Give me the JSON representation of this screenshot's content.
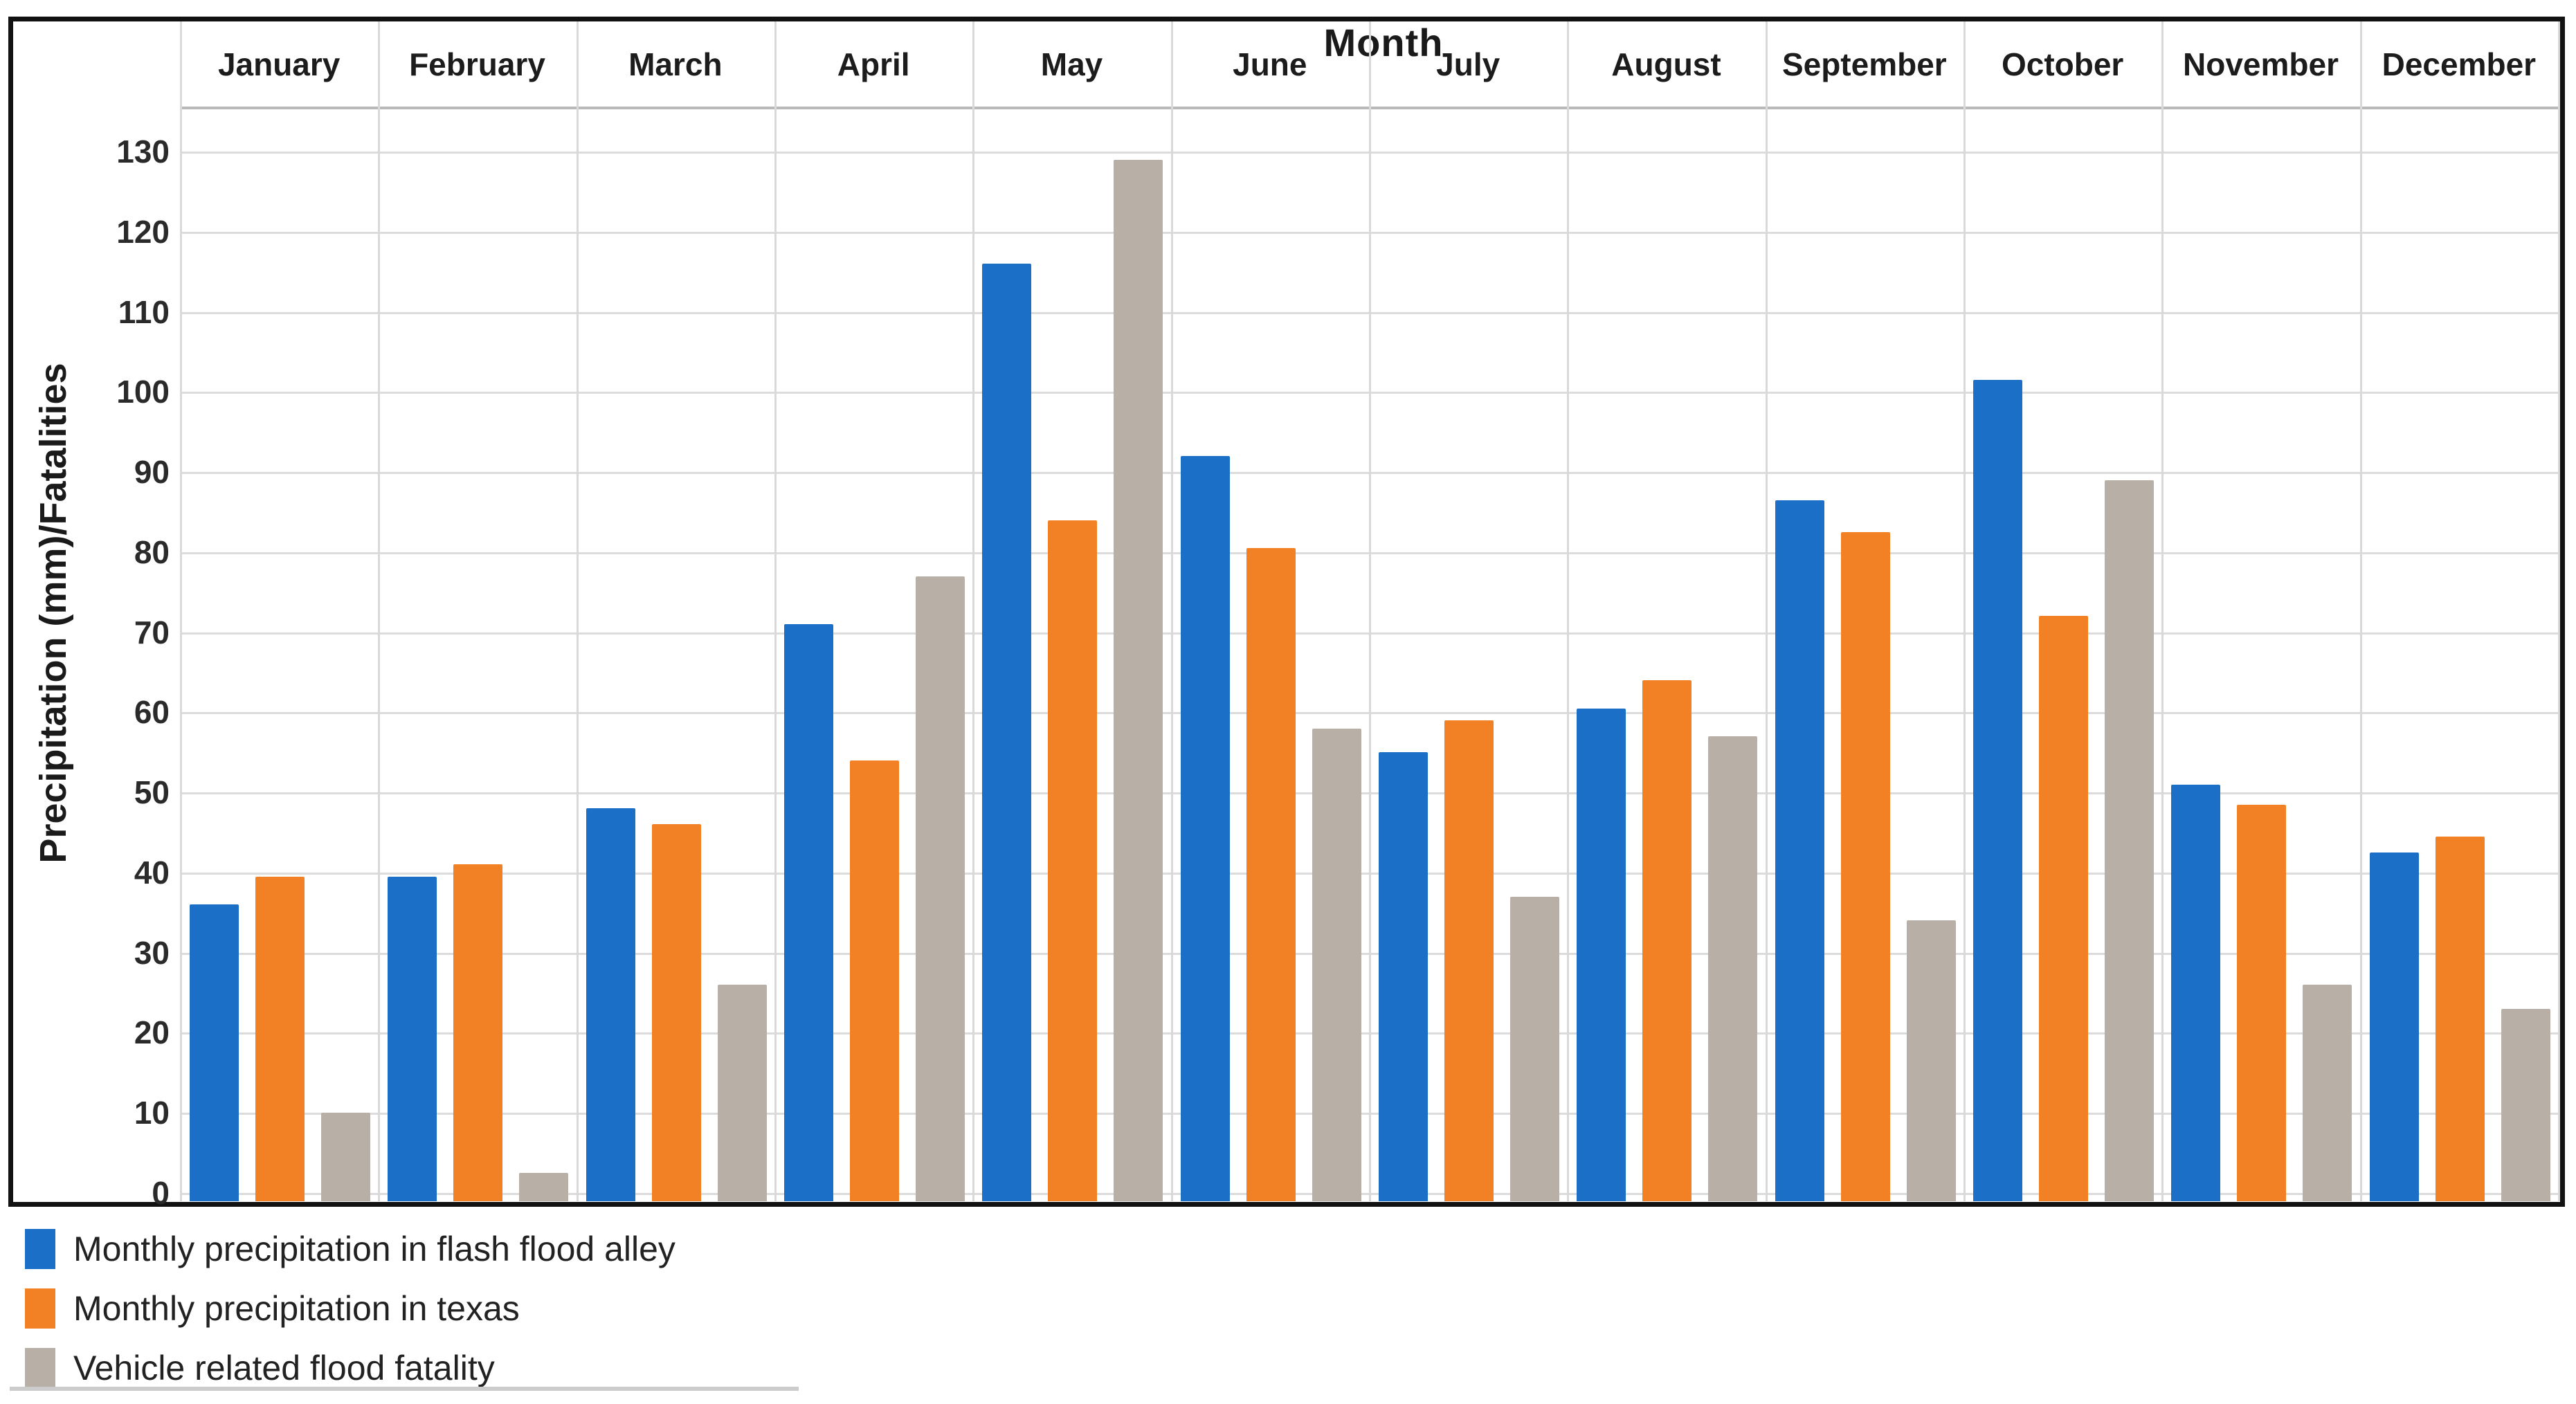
{
  "chart_data": {
    "type": "bar",
    "title": "Month",
    "ylabel": "Precipitation (mm)/Fatalities",
    "xlabel": "Month",
    "ylim": [
      0,
      135
    ],
    "ytick_step": 10,
    "yticks": [
      0,
      10,
      20,
      30,
      40,
      50,
      60,
      70,
      80,
      90,
      100,
      110,
      120,
      130
    ],
    "grid": true,
    "legend_position": "bottom-left",
    "categories": [
      "January",
      "February",
      "March",
      "April",
      "May",
      "June",
      "July",
      "August",
      "September",
      "October",
      "November",
      "December"
    ],
    "series": [
      {
        "name": "Monthly precipitation in flash flood alley",
        "color": "#1b6fc7",
        "values": [
          36,
          39.5,
          48,
          71,
          116,
          92,
          55,
          60.5,
          86.5,
          101.5,
          51,
          42.5
        ]
      },
      {
        "name": "Monthly precipitation in texas",
        "color": "#f28125",
        "values": [
          39.5,
          41,
          46,
          54,
          84,
          80.5,
          59,
          64,
          82.5,
          72,
          48.5,
          44.5
        ]
      },
      {
        "name": "Vehicle related flood fatality",
        "color": "#b8afa6",
        "values": [
          10,
          2.5,
          26,
          77,
          129,
          58,
          37,
          57,
          34,
          89,
          26,
          23
        ]
      }
    ]
  },
  "style_colors": {
    "gridline": "#dcdcdc",
    "separator": "#d9d9d9",
    "frame": "#121212"
  }
}
